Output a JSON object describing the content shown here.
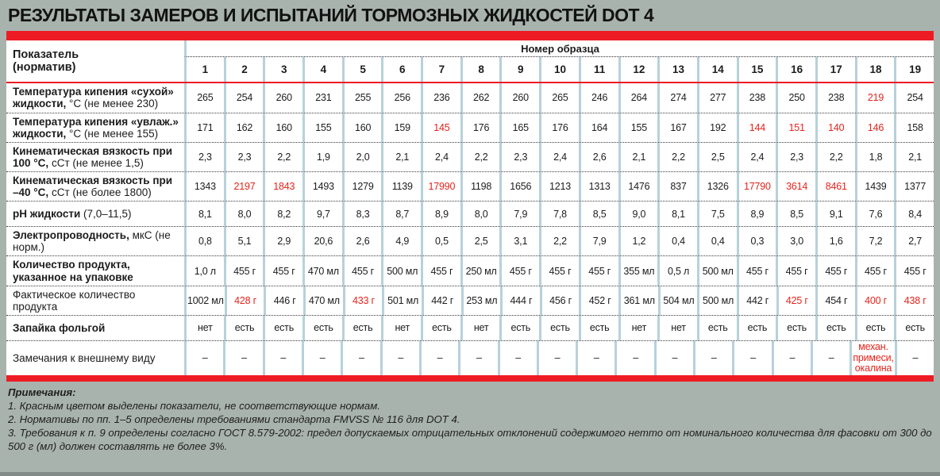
{
  "page_title": "РЕЗУЛЬТАТЫ ЗАМЕРОВ И ИСПЫТАНИЙ ТОРМОЗНЫХ ЖИДКОСТЕЙ DOT 4",
  "colors": {
    "accent_red": "#ed1c24",
    "value_red": "#e5231b",
    "column_separator_blue": "#b7d1da",
    "page_background": "#a9b3ae",
    "table_background": "#ffffff"
  },
  "table": {
    "header": {
      "indicator_line1": "Показатель",
      "indicator_line2": "(норматив)",
      "sample_group_label": "Номер образца",
      "sample_numbers": [
        "1",
        "2",
        "3",
        "4",
        "5",
        "6",
        "7",
        "8",
        "9",
        "10",
        "11",
        "12",
        "13",
        "14",
        "15",
        "16",
        "17",
        "18",
        "19"
      ]
    },
    "rows": [
      {
        "label": {
          "main": "Температура кипения «сухой» жидкости,",
          "unit": "°С",
          "norm": "(не менее 230)",
          "bold": true
        },
        "values": [
          "265",
          "254",
          "260",
          "231",
          "255",
          "256",
          "236",
          "262",
          "260",
          "265",
          "246",
          "264",
          "274",
          "277",
          "238",
          "250",
          "238",
          "219",
          "254"
        ],
        "red": [
          17
        ]
      },
      {
        "label": {
          "main": "Температура кипения «увлаж.» жидкости,",
          "unit": "°С",
          "norm": "(не менее 155)",
          "bold": true
        },
        "values": [
          "171",
          "162",
          "160",
          "155",
          "160",
          "159",
          "145",
          "176",
          "165",
          "176",
          "164",
          "155",
          "167",
          "192",
          "144",
          "151",
          "140",
          "146",
          "158"
        ],
        "red": [
          6,
          14,
          15,
          16,
          17
        ]
      },
      {
        "label": {
          "main": "Кинематическая вязкость при 100 °С,",
          "unit": "сСт",
          "norm": "(не менее 1,5)",
          "bold": true
        },
        "values": [
          "2,3",
          "2,3",
          "2,2",
          "1,9",
          "2,0",
          "2,1",
          "2,4",
          "2,2",
          "2,3",
          "2,4",
          "2,6",
          "2,1",
          "2,2",
          "2,5",
          "2,4",
          "2,3",
          "2,2",
          "1,8",
          "2,1"
        ],
        "red": []
      },
      {
        "label": {
          "main": "Кинематическая вязкость при –40 °С,",
          "unit": "сСт",
          "norm": "(не более 1800)",
          "bold": true
        },
        "values": [
          "1343",
          "2197",
          "1843",
          "1493",
          "1279",
          "1139",
          "17990",
          "1198",
          "1656",
          "1213",
          "1313",
          "1476",
          "837",
          "1326",
          "17790",
          "3614",
          "8461",
          "1439",
          "1377"
        ],
        "red": [
          1,
          2,
          6,
          14,
          15,
          16
        ]
      },
      {
        "label": {
          "main": "рН жидкости",
          "unit": "",
          "norm": "(7,0–11,5)",
          "bold": true
        },
        "values": [
          "8,1",
          "8,0",
          "8,2",
          "9,7",
          "8,3",
          "8,7",
          "8,9",
          "8,0",
          "7,9",
          "7,8",
          "8,5",
          "9,0",
          "8,1",
          "7,5",
          "8,9",
          "8,5",
          "9,1",
          "7,6",
          "8,4"
        ],
        "red": []
      },
      {
        "label": {
          "main": "Электропроводность,",
          "unit": "мкС",
          "norm": "(не норм.)",
          "bold": true
        },
        "values": [
          "0,8",
          "5,1",
          "2,9",
          "20,6",
          "2,6",
          "4,9",
          "0,5",
          "2,5",
          "3,1",
          "2,2",
          "7,9",
          "1,2",
          "0,4",
          "0,4",
          "0,3",
          "3,0",
          "1,6",
          "7,2",
          "2,7"
        ],
        "red": []
      },
      {
        "label": {
          "main": "Количество продукта, указанное на упаковке",
          "unit": "",
          "norm": "",
          "bold": true
        },
        "values": [
          "1,0 л",
          "455 г",
          "455 г",
          "470 мл",
          "455 г",
          "500 мл",
          "455 г",
          "250 мл",
          "455 г",
          "455 г",
          "455 г",
          "355 мл",
          "0,5 л",
          "500 мл",
          "455 г",
          "455 г",
          "455 г",
          "455 г",
          "455 г"
        ],
        "red": []
      },
      {
        "label": {
          "main": "Фактическое количество продукта",
          "unit": "",
          "norm": "",
          "bold": false
        },
        "values": [
          "1002 мл",
          "428 г",
          "446 г",
          "470 мл",
          "433 г",
          "501 мл",
          "442 г",
          "253 мл",
          "444 г",
          "456 г",
          "452 г",
          "361 мл",
          "504 мл",
          "500 мл",
          "442 г",
          "425 г",
          "454 г",
          "400 г",
          "438 г"
        ],
        "red": [
          1,
          4,
          15,
          17,
          18
        ]
      },
      {
        "label": {
          "main": "Запайка фольгой",
          "unit": "",
          "norm": "",
          "bold": true
        },
        "values": [
          "нет",
          "есть",
          "есть",
          "есть",
          "есть",
          "нет",
          "есть",
          "нет",
          "есть",
          "есть",
          "есть",
          "нет",
          "нет",
          "есть",
          "есть",
          "есть",
          "есть",
          "есть",
          "есть"
        ],
        "red": []
      },
      {
        "label": {
          "main": "Замечания к внешнему виду",
          "unit": "",
          "norm": "",
          "bold": false
        },
        "values": [
          "–",
          "–",
          "–",
          "–",
          "–",
          "–",
          "–",
          "–",
          "–",
          "–",
          "–",
          "–",
          "–",
          "–",
          "–",
          "–",
          "–",
          "механ. примеси, окалина",
          "–"
        ],
        "red": [
          17
        ]
      }
    ]
  },
  "notes": {
    "title": "Примечания:",
    "items": [
      "1. Красным цветом выделены показатели, не соответствующие нормам.",
      "2. Нормативы по пп. 1–5 определены требованиями стандарта FMVSS № 116 для DOT 4.",
      "3. Требования к п. 9 определены согласно ГОСТ 8.579-2002: предел допускаемых отрицательных отклонений содержимого нетто от номинального количества для фасовки от 300 до 500 г (мл) должен составлять не более 3%."
    ]
  }
}
